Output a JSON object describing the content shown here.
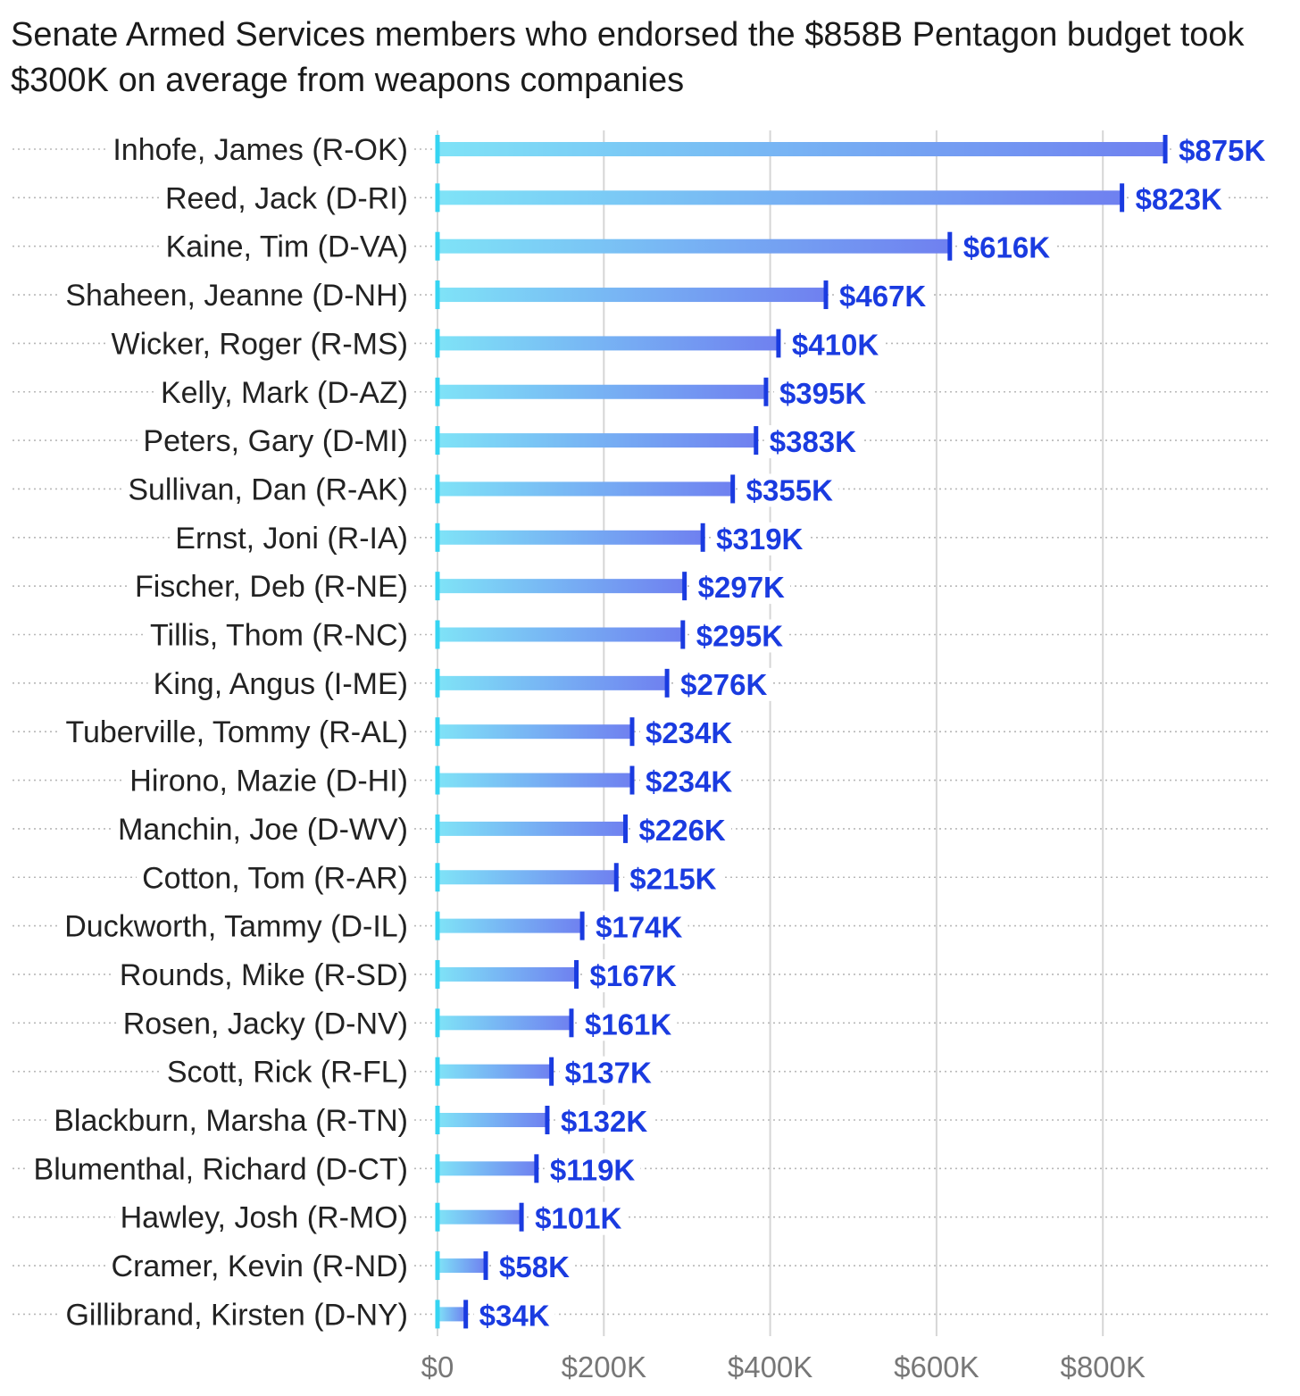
{
  "colors": {
    "bar_start": "#7fe3f7",
    "bar_end": "#6f80f0",
    "end_marker": "#1a3be0",
    "zero_marker": "#35d4f2",
    "value_text": "#1a3be0",
    "grid": "#d6d6d6",
    "leader": "#b8b8b8"
  },
  "chart_data": {
    "type": "bar",
    "orientation": "horizontal",
    "title": "Senate Armed Services members who endorsed the $858B Pentagon budget took $300K on average from weapons companies",
    "xlabel": "",
    "ylabel": "",
    "xlim": [
      0,
      935
    ],
    "grid": "vertical",
    "x_ticks": [
      {
        "value": 0,
        "label": "$0"
      },
      {
        "value": 200,
        "label": "$200K"
      },
      {
        "value": 400,
        "label": "$400K"
      },
      {
        "value": 600,
        "label": "$600K"
      },
      {
        "value": 800,
        "label": "$800K"
      }
    ],
    "categories": [
      "Inhofe, James (R-OK)",
      "Reed, Jack (D-RI)",
      "Kaine, Tim (D-VA)",
      "Shaheen, Jeanne (D-NH)",
      "Wicker, Roger (R-MS)",
      "Kelly, Mark (D-AZ)",
      "Peters, Gary (D-MI)",
      "Sullivan, Dan (R-AK)",
      "Ernst, Joni (R-IA)",
      "Fischer, Deb (R-NE)",
      "Tillis, Thom (R-NC)",
      "King, Angus (I-ME)",
      "Tuberville, Tommy (R-AL)",
      "Hirono, Mazie (D-HI)",
      "Manchin, Joe (D-WV)",
      "Cotton, Tom (R-AR)",
      "Duckworth, Tammy (D-IL)",
      "Rounds, Mike (R-SD)",
      "Rosen, Jacky (D-NV)",
      "Scott, Rick (R-FL)",
      "Blackburn, Marsha (R-TN)",
      "Blumenthal, Richard (D-CT)",
      "Hawley, Josh (R-MO)",
      "Cramer, Kevin (R-ND)",
      "Gillibrand, Kirsten (D-NY)"
    ],
    "values": [
      875,
      823,
      616,
      467,
      410,
      395,
      383,
      355,
      319,
      297,
      295,
      276,
      234,
      234,
      226,
      215,
      174,
      167,
      161,
      137,
      132,
      119,
      101,
      58,
      34
    ],
    "value_labels": [
      "$875K",
      "$823K",
      "$616K",
      "$467K",
      "$410K",
      "$395K",
      "$383K",
      "$355K",
      "$319K",
      "$297K",
      "$295K",
      "$276K",
      "$234K",
      "$234K",
      "$226K",
      "$215K",
      "$174K",
      "$167K",
      "$161K",
      "$137K",
      "$132K",
      "$119K",
      "$101K",
      "$58K",
      "$34K"
    ]
  }
}
